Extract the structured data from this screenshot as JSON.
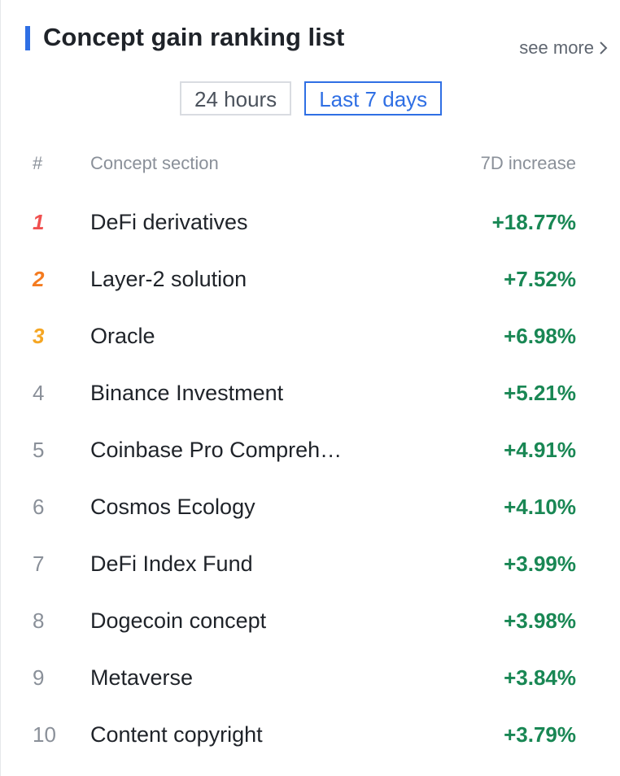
{
  "header": {
    "title": "Concept gain ranking list",
    "see_more": "see more",
    "see_more_icon": "chevron-right-icon"
  },
  "tabs": [
    {
      "label": "24 hours",
      "active": false
    },
    {
      "label": "Last 7 days",
      "active": true
    }
  ],
  "columns": {
    "rank": "#",
    "name": "Concept section",
    "increase": "7D increase"
  },
  "colors": {
    "accent": "#2f6fe4",
    "gain": "#198754",
    "rank1": "#f0504f",
    "rank2": "#f47b20",
    "rank3": "#f5a623"
  },
  "rows": [
    {
      "rank": "1",
      "name": "DeFi derivatives",
      "increase": "+18.77%"
    },
    {
      "rank": "2",
      "name": "Layer-2 solution",
      "increase": "+7.52%"
    },
    {
      "rank": "3",
      "name": "Oracle",
      "increase": "+6.98%"
    },
    {
      "rank": "4",
      "name": "Binance Investment",
      "increase": "+5.21%"
    },
    {
      "rank": "5",
      "name": "Coinbase Pro Compreh…",
      "increase": "+4.91%"
    },
    {
      "rank": "6",
      "name": "Cosmos Ecology",
      "increase": "+4.10%"
    },
    {
      "rank": "7",
      "name": "DeFi Index Fund",
      "increase": "+3.99%"
    },
    {
      "rank": "8",
      "name": "Dogecoin concept",
      "increase": "+3.98%"
    },
    {
      "rank": "9",
      "name": "Metaverse",
      "increase": "+3.84%"
    },
    {
      "rank": "10",
      "name": "Content copyright",
      "increase": "+3.79%"
    }
  ]
}
